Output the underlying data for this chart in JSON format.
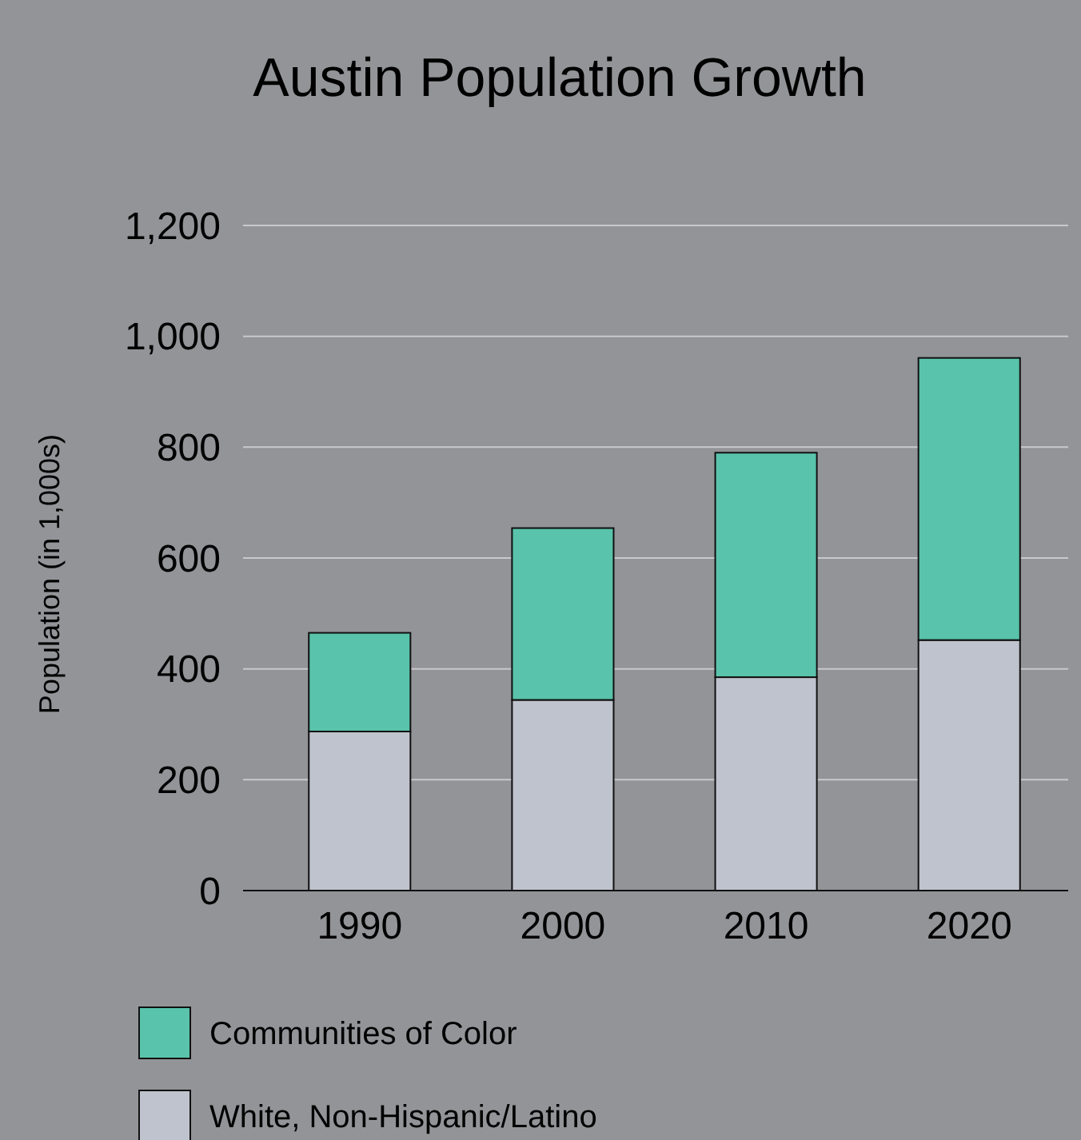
{
  "chart_data": {
    "type": "bar",
    "title": "Austin Population Growth",
    "ylabel": "Population (in 1,000s)",
    "categories": [
      "1990",
      "2000",
      "2010",
      "2020"
    ],
    "stacked": true,
    "series": [
      {
        "name": "White, Non-Hispanic/Latino",
        "color": "#bfc3cd",
        "values": [
          287,
          344,
          385,
          452
        ]
      },
      {
        "name": "Communities of Color",
        "color": "#59c3ab",
        "values": [
          178,
          310,
          405,
          509
        ]
      }
    ],
    "ylim": [
      0,
      1200
    ],
    "yticks": [
      0,
      {
        "value": 200,
        "label": "200"
      },
      400,
      600,
      800,
      {
        "value": 1000,
        "label": "1,000"
      },
      {
        "value": 1200,
        "label": "1,200"
      }
    ],
    "grid": "y",
    "legend": "bottom"
  }
}
